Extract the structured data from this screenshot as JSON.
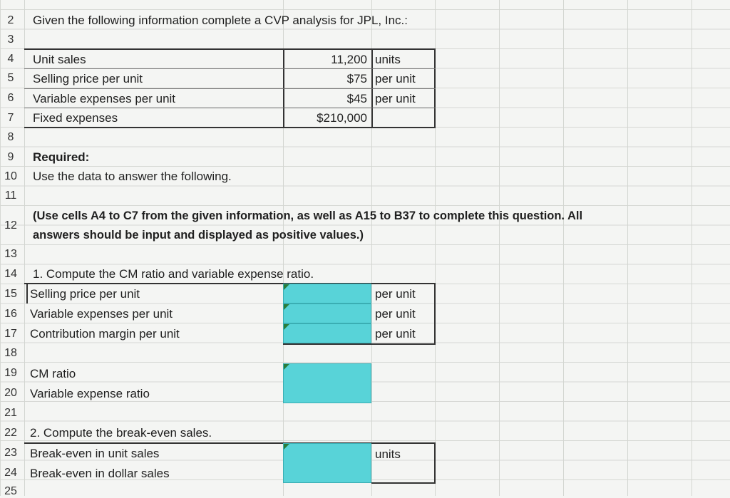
{
  "rows": [
    "2",
    "3",
    "4",
    "5",
    "6",
    "7",
    "8",
    "9",
    "10",
    "11",
    "12",
    "13",
    "14",
    "15",
    "16",
    "17",
    "18",
    "19",
    "20",
    "21",
    "22",
    "23",
    "24",
    "25"
  ],
  "intro": "Given the following information complete a CVP analysis for JPL, Inc.:",
  "given": [
    {
      "label": "Unit sales",
      "value": "11,200",
      "unit": "units"
    },
    {
      "label": "Selling price per unit",
      "value": "$75",
      "unit": "per unit"
    },
    {
      "label": "Variable expenses per unit",
      "value": "$45",
      "unit": "per unit"
    },
    {
      "label": "Fixed expenses",
      "value": "$210,000",
      "unit": ""
    }
  ],
  "required": "Required:",
  "use_data": "Use the data to answer the following.",
  "note_line1": "(Use cells A4 to C7 from the given information, as well as A15 to B37 to complete this question. All",
  "note_line2": "answers should be input and displayed as positive values.)",
  "q1": "1. Compute the CM ratio and variable expense ratio.",
  "q1_rows": [
    {
      "label": "Selling price per unit",
      "unit": "per unit"
    },
    {
      "label": "Variable expenses per unit",
      "unit": "per unit"
    },
    {
      "label": "Contribution margin per unit",
      "unit": "per unit"
    }
  ],
  "cm_ratio": "CM ratio",
  "var_exp_ratio": "Variable expense ratio",
  "q2": "2. Compute the break-even sales.",
  "be_units": "Break-even in unit sales",
  "be_units_unit": "units",
  "be_dollars": "Break-even in dollar sales",
  "colors": {
    "input_fill": "#58d3d8",
    "grid": "#d6d8d4"
  }
}
